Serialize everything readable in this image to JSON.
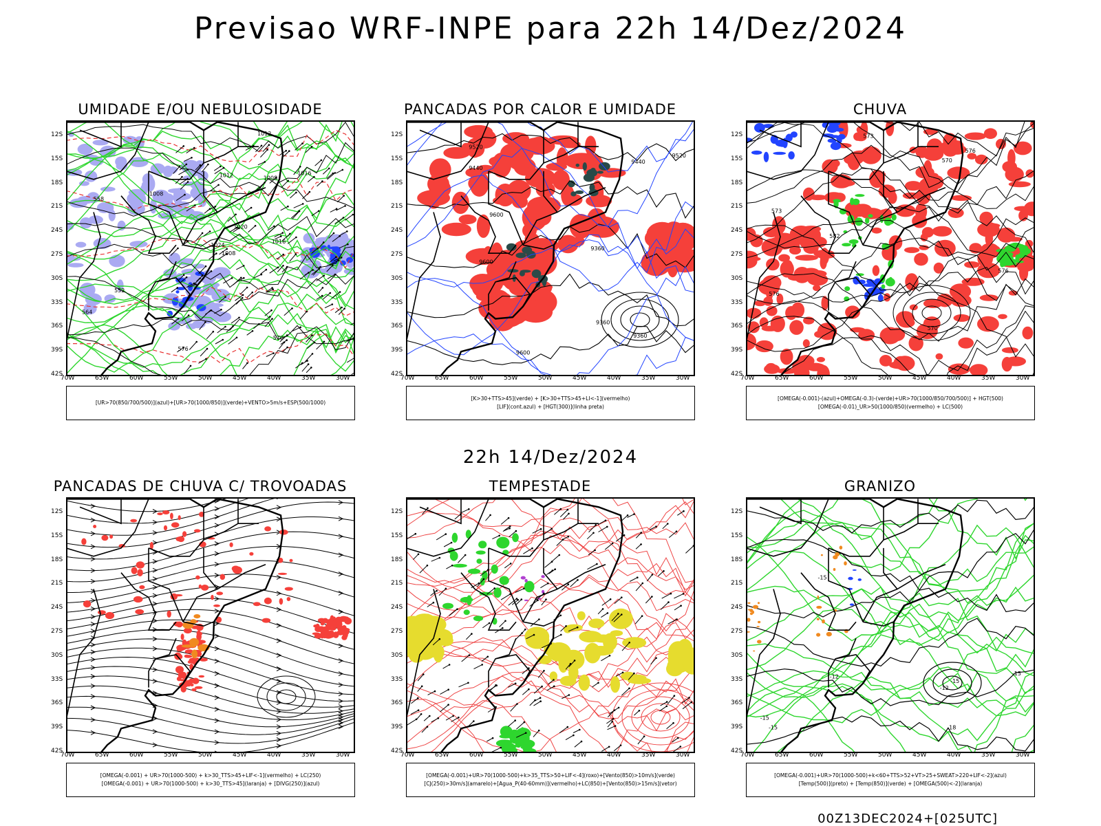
{
  "main_title": "Previsao WRF-INPE  para 22h 14/Dez/2024",
  "mid_title": "22h 14/Dez/2024",
  "footer": "00Z13DEC2024+[025UTC]",
  "lat_labels": [
    "12S",
    "15S",
    "18S",
    "21S",
    "24S",
    "27S",
    "30S",
    "33S",
    "36S",
    "39S",
    "42S"
  ],
  "lon_labels": [
    "70W",
    "65W",
    "60W",
    "55W",
    "50W",
    "45W",
    "40W",
    "35W",
    "30W"
  ],
  "colors": {
    "red": "#f5403a",
    "green": "#2ed62e",
    "blue": "#2244ff",
    "lavender": "#aaaaf2",
    "yellow": "#e6dc2e",
    "orange": "#f08a20",
    "darkteal": "#2a4a48",
    "purple": "#b040d0"
  },
  "panels": [
    {
      "title": "UMIDADE E/OU NEBULOSIDADE",
      "legend": [
        "[UR>70(850/700/500)](azul)+[UR>70(1000/850)](verde)+VENTO>5m/s+ESP(500/1000)"
      ],
      "contour_labels": [
        "1008",
        "1008",
        "1008",
        "1012",
        "1012",
        "1016",
        "1016",
        "1020",
        "1024",
        "576",
        "570",
        "564",
        "558",
        "552"
      ]
    },
    {
      "title": "PANCADAS POR CALOR E UMIDADE",
      "legend": [
        "[K>30+TTS>45](verde) + [K>30+TTS>45+LI<-1](vermelho)",
        "[LIF](cont.azul) + [HGT(300)](linha preta)"
      ],
      "contour_labels": [
        "9600",
        "9600",
        "9600",
        "9520",
        "9520",
        "9440",
        "9440",
        "9360",
        "9360",
        "9360"
      ]
    },
    {
      "title": "CHUVA",
      "legend": [
        "[OMEGA(-0.001)-(azul)+OMEGA(-0.3)-(verde)+UR>70(1000/850/700/500)] + HGT(500)",
        "[OMEGA(-0.01)_UR>50(1000/850)(vermelho) + LC(500)"
      ],
      "contour_labels": [
        "582",
        "576",
        "576",
        "573",
        "570",
        "570",
        "576",
        "573"
      ]
    },
    {
      "title": "PANCADAS DE CHUVA C/ TROVOADAS",
      "legend": [
        "[OMEGA(-0.001) + UR>70(1000-500) + k>30_TTS>45+LIF<-1](vermelho) + LC(250)",
        "[OMEGA(-0.001) + UR>70(1000-500) + k>30_TTS>45](laranja) + [DIVG(250)](azul)"
      ],
      "contour_labels": []
    },
    {
      "title": "TEMPESTADE",
      "legend": [
        "[OMEGA(-0.001)+UR>70(1000-500)+k>35_TTS>50+LIF<-4](roxo)+[Vento(850)>10m/s](verde)",
        "[CJ(250)>30m/s](amarelo)+[Agua_P(40-60mm)](vermelho)+LC(850)+[Vento(850)>15m/s](vetor)"
      ],
      "contour_labels": []
    },
    {
      "title": "GRANIZO",
      "legend": [
        "[OMEGA(-0.001)+UR>70(1000-500)+k<60+TTS>52+VT>25+SWEAT>220+LIF<-2](azul)",
        "[Temp(500)](preto) + [Temp(850)](verde) + [OMEGA(500)<-2](laranja)"
      ],
      "contour_labels": [
        "-12",
        "-15",
        "-15",
        "-12",
        "-15",
        "-15",
        "-18",
        "-15"
      ]
    }
  ]
}
